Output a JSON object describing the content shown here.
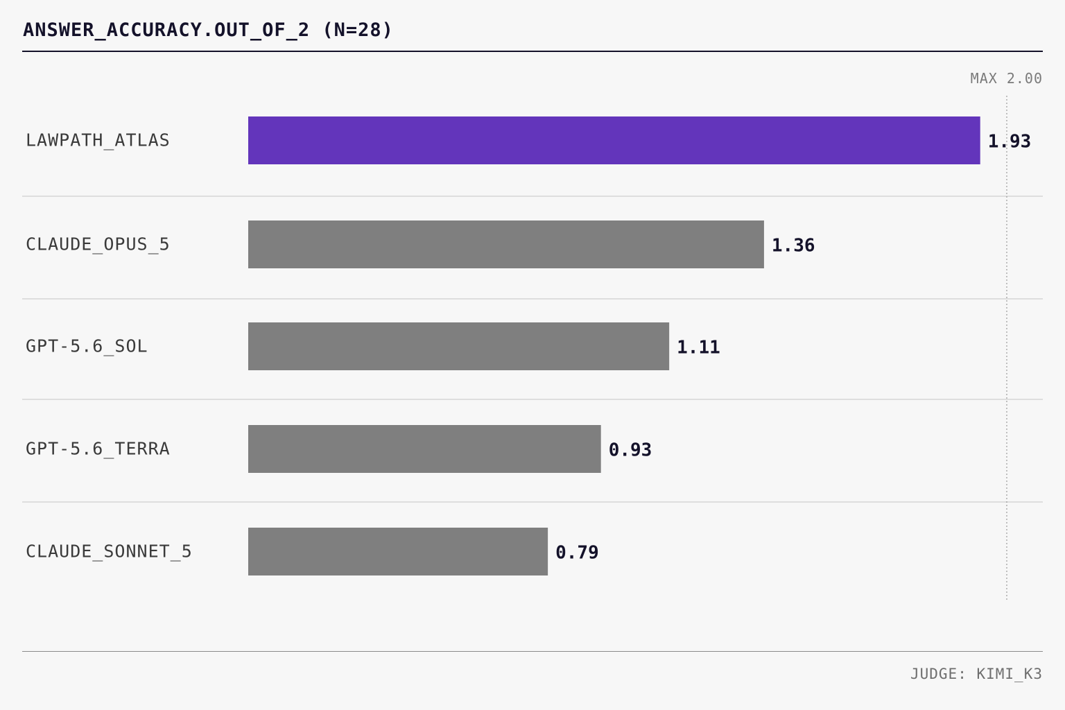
{
  "title": "ANSWER_ACCURACY.OUT_OF_2 (N=28)",
  "max_label": "MAX 2.00",
  "footer": "JUDGE: KIMI_K3",
  "colors": {
    "highlight": "#6335bb",
    "bar": "#7f7f7f",
    "text": "#14122a",
    "background": "#f7f7f7",
    "separator": "#cfcfcf"
  },
  "chart_data": {
    "type": "bar",
    "orientation": "horizontal",
    "title": "ANSWER_ACCURACY.OUT_OF_2 (N=28)",
    "categories": [
      "LAWPATH_ATLAS",
      "CLAUDE_OPUS_5",
      "GPT-5.6_SOL",
      "GPT-5.6_TERRA",
      "CLAUDE_SONNET_5"
    ],
    "values": [
      1.93,
      1.36,
      1.11,
      0.93,
      0.79
    ],
    "value_labels": [
      "1.93",
      "1.36",
      "1.11",
      "0.93",
      "0.79"
    ],
    "highlight_index": 0,
    "xlim": [
      0,
      2.0
    ],
    "reference_line": 2.0,
    "grid": false
  }
}
